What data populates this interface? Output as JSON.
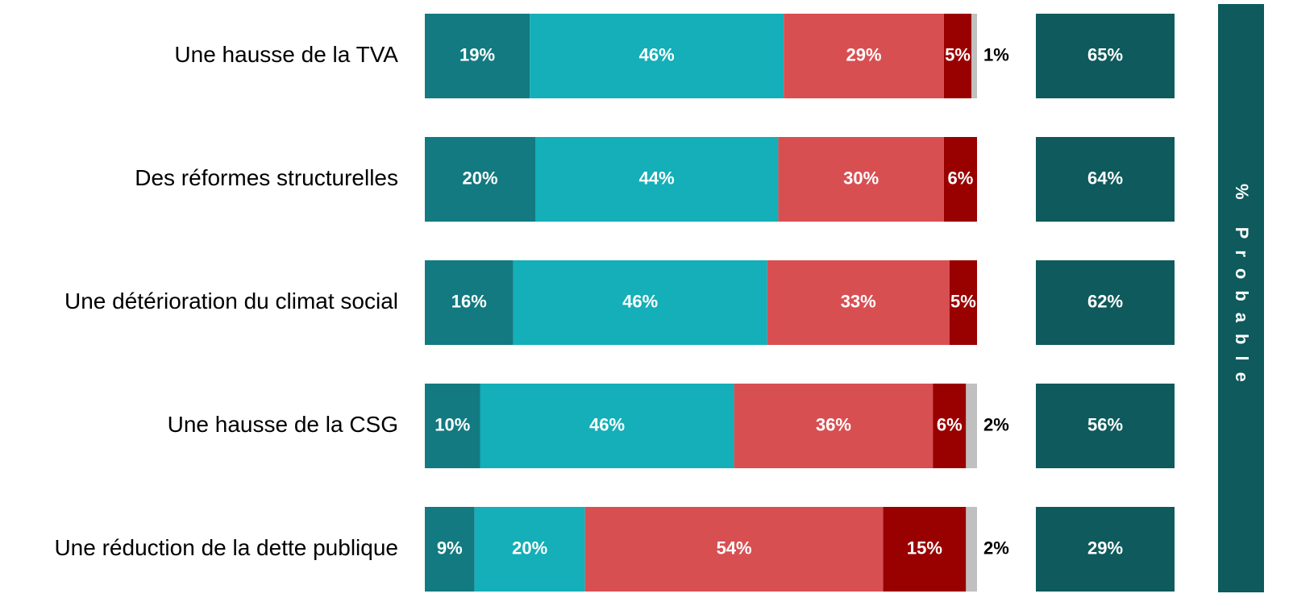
{
  "chart_data": {
    "type": "bar",
    "orientation": "horizontal",
    "stacked": true,
    "categories": [
      "Une hausse de la TVA",
      "Des réformes structurelles",
      "Une détérioration du climat social",
      "Une hausse de la CSG",
      "Une réduction de la dette publique"
    ],
    "xlim": [
      0,
      100
    ],
    "series": [
      {
        "color": "#127a80",
        "values": [
          19,
          20,
          16,
          10,
          9
        ],
        "value_labels": [
          "19%",
          "20%",
          "16%",
          "10%",
          "9%"
        ]
      },
      {
        "color": "#14afb8",
        "values": [
          46,
          44,
          46,
          46,
          20
        ],
        "value_labels": [
          "46%",
          "44%",
          "46%",
          "46%",
          "20%"
        ]
      },
      {
        "color": "#d84f52",
        "values": [
          29,
          30,
          33,
          36,
          54
        ],
        "value_labels": [
          "29%",
          "30%",
          "33%",
          "36%",
          "54%"
        ]
      },
      {
        "color": "#990000",
        "values": [
          5,
          6,
          5,
          6,
          15
        ],
        "value_labels": [
          "5%",
          "6%",
          "5%",
          "6%",
          "15%"
        ]
      },
      {
        "color": "#c0c0c0",
        "label_position": "outside",
        "values": [
          1,
          null,
          null,
          2,
          2
        ],
        "value_labels": [
          "1%",
          null,
          null,
          "2%",
          "2%"
        ]
      }
    ],
    "probable": {
      "title": "% Probable",
      "color": "#0e5a5c",
      "values": [
        65,
        64,
        62,
        56,
        29
      ],
      "value_labels": [
        "65%",
        "64%",
        "62%",
        "56%",
        "29%"
      ]
    }
  }
}
